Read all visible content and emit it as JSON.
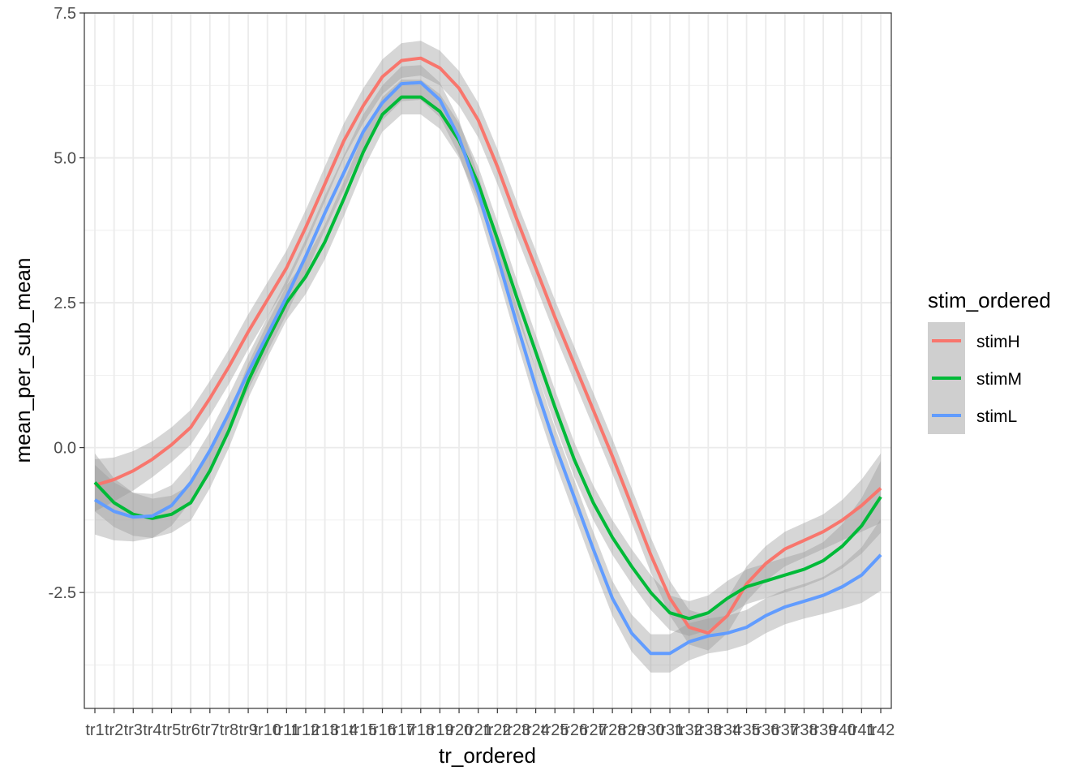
{
  "chart_data": {
    "type": "line",
    "xlabel": "tr_ordered",
    "ylabel": "mean_per_sub_mean",
    "categories": [
      "tr1",
      "tr2",
      "tr3",
      "tr4",
      "tr5",
      "tr6",
      "tr7",
      "tr8",
      "tr9",
      "tr10",
      "tr11",
      "tr12",
      "tr13",
      "tr14",
      "tr15",
      "tr16",
      "tr17",
      "tr18",
      "tr19",
      "tr20",
      "tr21",
      "tr22",
      "tr23",
      "tr24",
      "tr25",
      "tr26",
      "tr27",
      "tr28",
      "tr29",
      "tr30",
      "tr31",
      "tr32",
      "tr33",
      "tr34",
      "tr35",
      "tr36",
      "tr37",
      "tr38",
      "tr39",
      "tr40",
      "tr41",
      "tr42"
    ],
    "ylim": [
      -4.5,
      7.5
    ],
    "yticks": [
      -2.5,
      0.0,
      2.5,
      5.0,
      7.5
    ],
    "ytick_labels": [
      "-2.5",
      "0.0",
      "2.5",
      "5.0",
      "7.5"
    ],
    "grid": true,
    "legend": {
      "title": "stim_ordered",
      "placement": "right"
    },
    "series": [
      {
        "name": "stimH",
        "color": "#F8766D",
        "values": [
          -0.65,
          -0.55,
          -0.4,
          -0.2,
          0.05,
          0.35,
          0.85,
          1.4,
          2.0,
          2.55,
          3.1,
          3.8,
          4.55,
          5.3,
          5.9,
          6.4,
          6.68,
          6.72,
          6.55,
          6.2,
          5.65,
          4.85,
          3.95,
          3.1,
          2.25,
          1.45,
          0.65,
          -0.15,
          -1.0,
          -1.85,
          -2.6,
          -3.1,
          -3.2,
          -2.9,
          -2.35,
          -2.0,
          -1.75,
          -1.6,
          -1.45,
          -1.25,
          -1.0,
          -0.7
        ],
        "ci": [
          0.45,
          0.38,
          0.34,
          0.31,
          0.3,
          0.3,
          0.3,
          0.3,
          0.3,
          0.3,
          0.3,
          0.3,
          0.3,
          0.3,
          0.3,
          0.3,
          0.3,
          0.3,
          0.3,
          0.3,
          0.3,
          0.3,
          0.3,
          0.3,
          0.3,
          0.3,
          0.3,
          0.3,
          0.3,
          0.3,
          0.3,
          0.3,
          0.3,
          0.3,
          0.3,
          0.3,
          0.3,
          0.3,
          0.3,
          0.35,
          0.45,
          0.6
        ]
      },
      {
        "name": "stimM",
        "color": "#00BA38",
        "values": [
          -0.6,
          -0.95,
          -1.15,
          -1.22,
          -1.15,
          -0.95,
          -0.4,
          0.3,
          1.15,
          1.85,
          2.5,
          2.95,
          3.55,
          4.3,
          5.1,
          5.75,
          6.05,
          6.05,
          5.8,
          5.3,
          4.55,
          3.6,
          2.6,
          1.65,
          0.7,
          -0.2,
          -0.95,
          -1.55,
          -2.05,
          -2.5,
          -2.85,
          -2.95,
          -2.85,
          -2.6,
          -2.4,
          -2.3,
          -2.2,
          -2.1,
          -1.95,
          -1.7,
          -1.35,
          -0.85
        ],
        "ci": [
          0.5,
          0.42,
          0.37,
          0.34,
          0.32,
          0.31,
          0.3,
          0.3,
          0.3,
          0.3,
          0.3,
          0.3,
          0.3,
          0.3,
          0.3,
          0.3,
          0.3,
          0.3,
          0.3,
          0.3,
          0.3,
          0.3,
          0.3,
          0.3,
          0.3,
          0.3,
          0.3,
          0.3,
          0.3,
          0.3,
          0.3,
          0.3,
          0.3,
          0.3,
          0.3,
          0.3,
          0.3,
          0.3,
          0.32,
          0.38,
          0.48,
          0.62
        ]
      },
      {
        "name": "stimL",
        "color": "#619CFF",
        "values": [
          -0.9,
          -1.1,
          -1.2,
          -1.18,
          -1.0,
          -0.6,
          -0.05,
          0.6,
          1.3,
          1.95,
          2.6,
          3.3,
          4.05,
          4.75,
          5.45,
          5.95,
          6.28,
          6.3,
          6.0,
          5.35,
          4.4,
          3.3,
          2.15,
          1.05,
          0.05,
          -0.85,
          -1.75,
          -2.6,
          -3.2,
          -3.55,
          -3.55,
          -3.35,
          -3.25,
          -3.2,
          -3.1,
          -2.9,
          -2.75,
          -2.65,
          -2.55,
          -2.4,
          -2.2,
          -1.85
        ],
        "ci": [
          0.6,
          0.5,
          0.42,
          0.38,
          0.35,
          0.33,
          0.32,
          0.31,
          0.3,
          0.3,
          0.3,
          0.3,
          0.3,
          0.3,
          0.3,
          0.3,
          0.3,
          0.3,
          0.3,
          0.3,
          0.3,
          0.3,
          0.3,
          0.3,
          0.3,
          0.3,
          0.3,
          0.3,
          0.32,
          0.33,
          0.33,
          0.32,
          0.3,
          0.3,
          0.3,
          0.3,
          0.3,
          0.3,
          0.32,
          0.38,
          0.48,
          0.62
        ]
      }
    ]
  }
}
